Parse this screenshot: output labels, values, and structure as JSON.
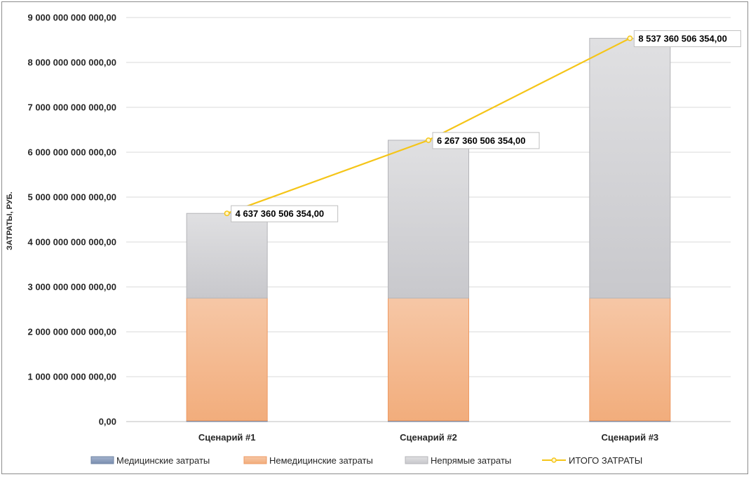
{
  "chart_data": {
    "type": "bar",
    "stacked": true,
    "categories": [
      "Сценарий #1",
      "Сценарий #2",
      "Сценарий #3"
    ],
    "ylabel": "ЗАТРАТЫ, РУБ.",
    "xlabel": "",
    "ylim": [
      0,
      9000000000000
    ],
    "ytick_step": 1000000000000,
    "ytick_labels": [
      "0,00",
      "1 000 000 000 000,00",
      "2 000 000 000 000,00",
      "3 000 000 000 000,00",
      "4 000 000 000 000,00",
      "5 000 000 000 000,00",
      "6 000 000 000 000,00",
      "7 000 000 000 000,00",
      "8 000 000 000 000,00",
      "9 000 000 000 000,00"
    ],
    "grid": true,
    "legend_position": "bottom",
    "series": [
      {
        "name": "Медицинские затраты",
        "kind": "bar",
        "color": "#8497b0",
        "values": [
          20000000000,
          20000000000,
          20000000000
        ]
      },
      {
        "name": "Немедицинские затраты",
        "kind": "bar",
        "color": "#f4b183",
        "values": [
          2730000000000,
          2730000000000,
          2730000000000
        ]
      },
      {
        "name": "Непрямые затраты",
        "kind": "bar",
        "color": "#d0d0d3",
        "values": [
          1887360506354,
          3517360506354,
          5787360506354
        ]
      },
      {
        "name": "ИТОГО ЗАТРАТЫ",
        "kind": "line",
        "color": "#f5c518",
        "values": [
          4637360506354,
          6267360506354,
          8537360506354
        ]
      }
    ],
    "data_labels": [
      "4 637 360 506 354,00",
      "6 267 360 506 354,00",
      "8 537 360 506 354,00"
    ]
  }
}
